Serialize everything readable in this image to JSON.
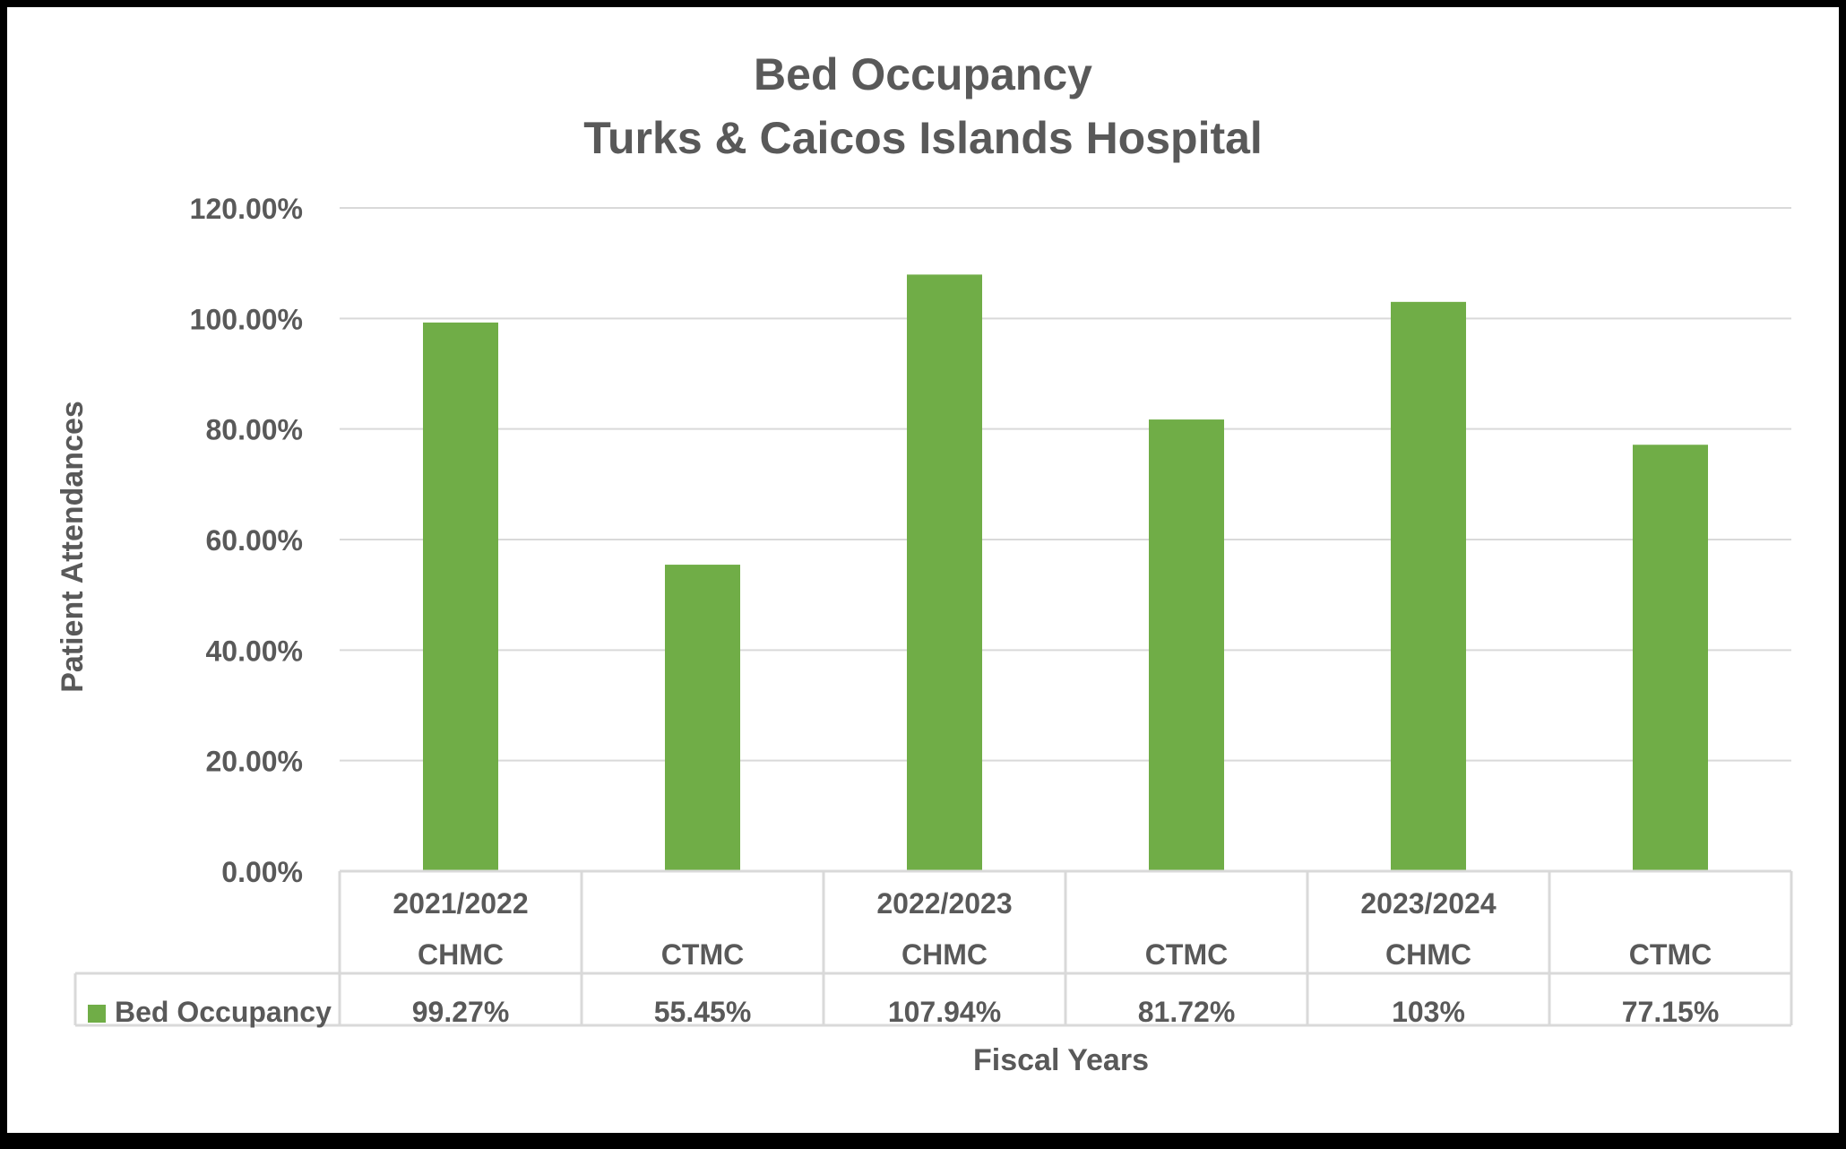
{
  "chart_data": {
    "type": "bar",
    "title": "Bed Occupancy",
    "subtitle": "Turks & Caicos Islands Hospital",
    "xlabel": "Fiscal Years",
    "ylabel": "Patient Attendances",
    "ylim": [
      0,
      120
    ],
    "yticks": [
      "0.00%",
      "20.00%",
      "40.00%",
      "60.00%",
      "80.00%",
      "100.00%",
      "120.00%"
    ],
    "grid": true,
    "legend_placement": "data-table",
    "groups": [
      "2021/2022",
      "2022/2023",
      "2023/2024"
    ],
    "categories": [
      "CHMC",
      "CTMC",
      "CHMC",
      "CTMC",
      "CHMC",
      "CTMC"
    ],
    "series": [
      {
        "name": "Bed Occupancy",
        "color": "#70ad47",
        "values": [
          99.27,
          55.45,
          107.94,
          81.72,
          103,
          77.15
        ],
        "labels": [
          "99.27%",
          "55.45%",
          "107.94%",
          "81.72%",
          "103%",
          "77.15%"
        ]
      }
    ]
  }
}
